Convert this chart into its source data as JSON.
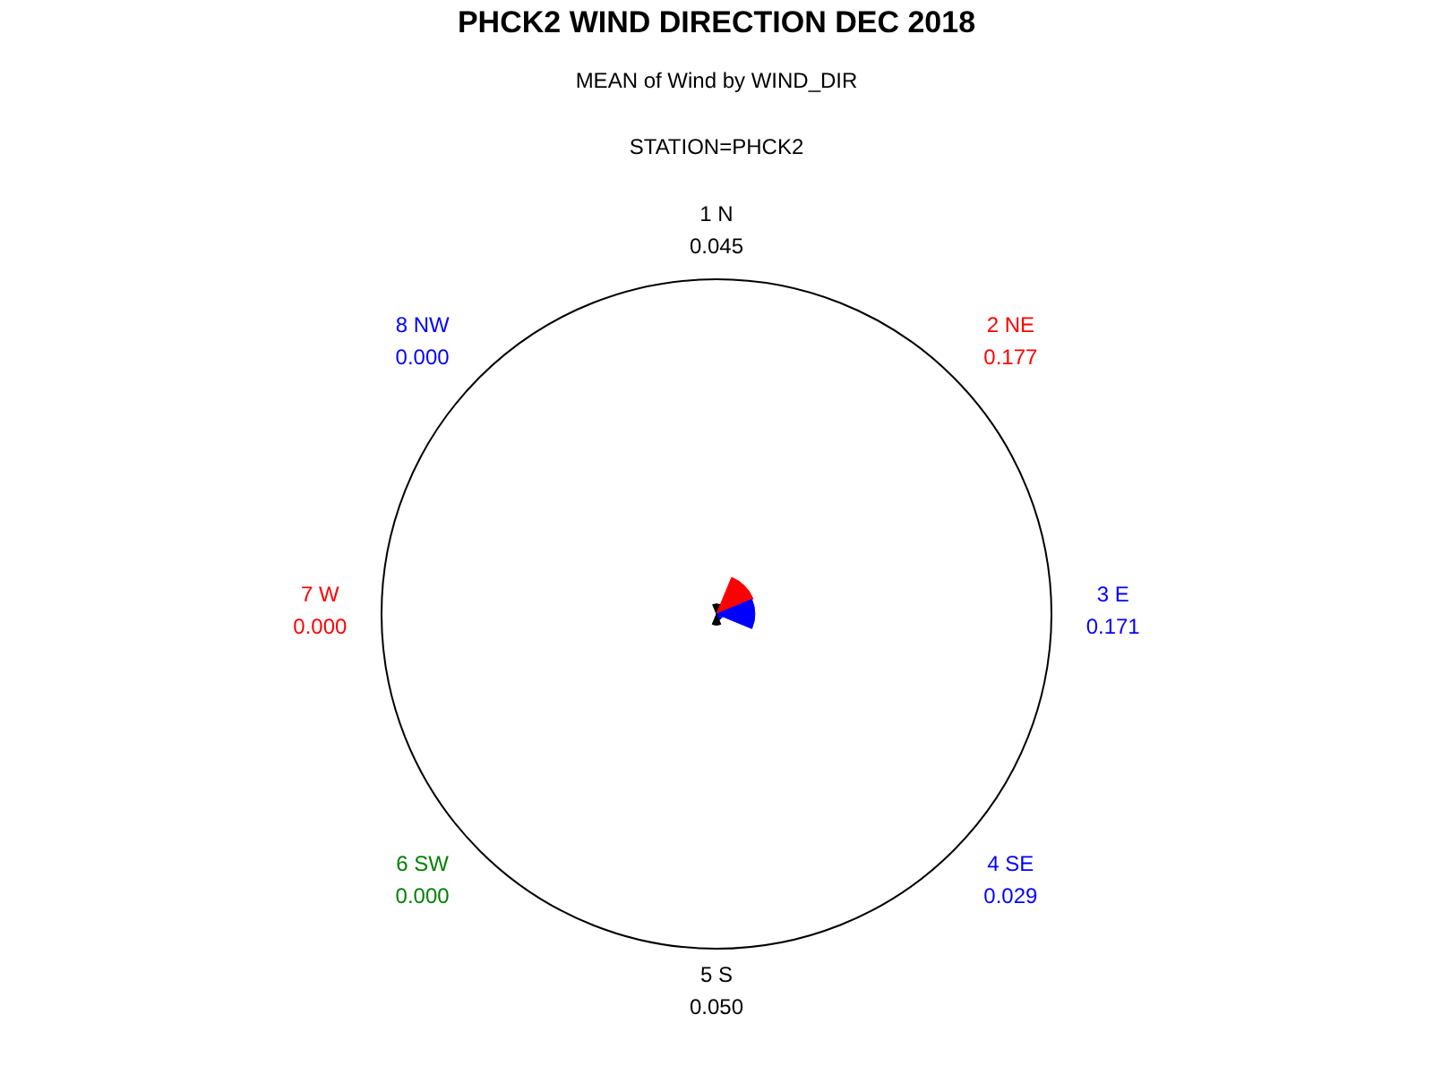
{
  "chart_data": {
    "type": "other",
    "title": "PHCK2 WIND DIRECTION DEC 2018",
    "subtitle": "MEAN of Wind by WIND_DIR",
    "annotations": [
      "STATION=PHCK2"
    ],
    "categories": [
      "1 N",
      "2 NE",
      "3 E",
      "4 SE",
      "5 S",
      "6 SW",
      "7 W",
      "8 NW"
    ],
    "values": [
      0.045,
      0.177,
      0.171,
      0.029,
      0.05,
      0.0,
      0.0,
      0.0
    ],
    "value_labels": [
      "0.045",
      "0.177",
      "0.171",
      "0.029",
      "0.050",
      "0.000",
      "0.000",
      "0.000"
    ],
    "colors": [
      "#000000",
      "#ff0000",
      "#0000ff",
      "#0000ff",
      "#000000",
      "#008000",
      "#ff0000",
      "#0000ff"
    ]
  }
}
